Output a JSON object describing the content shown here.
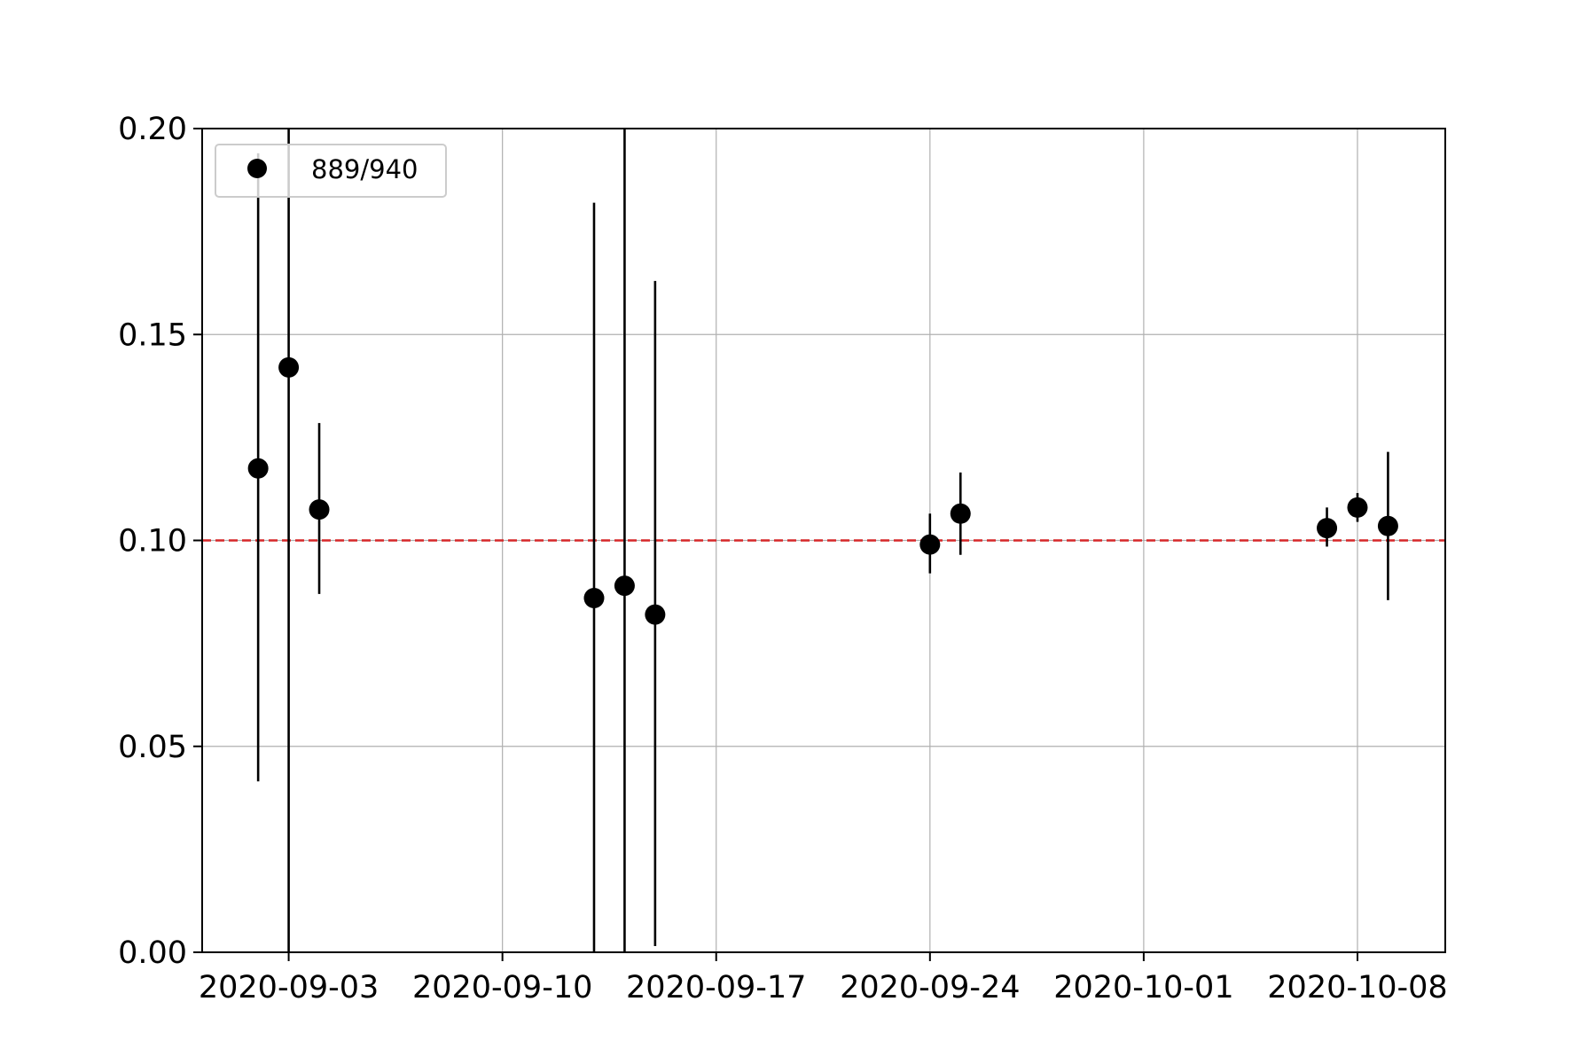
{
  "chart_data": {
    "type": "scatter",
    "title": "",
    "xlabel": "",
    "ylabel": "",
    "x_scale": "date",
    "xlim": [
      "2020-08-31T04:00",
      "2020-10-10T21:00"
    ],
    "ylim": [
      0,
      0.2
    ],
    "grid": true,
    "legend_position": "upper left",
    "x_ticks": [
      "2020-09-03",
      "2020-09-10",
      "2020-09-17",
      "2020-09-24",
      "2020-10-01",
      "2020-10-08"
    ],
    "y_ticks": [
      "0.00",
      "0.05",
      "0.10",
      "0.15",
      "0.20"
    ],
    "reference_line": {
      "y": 0.1,
      "color": "#d62728",
      "style": "dashed"
    },
    "series": [
      {
        "name": "889/940",
        "color": "#000000",
        "points": [
          {
            "x": "2020-09-02",
            "y": 0.1175,
            "yerr_low": 0.0415,
            "yerr_high": 0.194
          },
          {
            "x": "2020-09-03",
            "y": 0.142,
            "yerr_low": 0.0,
            "yerr_high": 0.2
          },
          {
            "x": "2020-09-04",
            "y": 0.1075,
            "yerr_low": 0.087,
            "yerr_high": 0.1285
          },
          {
            "x": "2020-09-13",
            "y": 0.086,
            "yerr_low": 0.0,
            "yerr_high": 0.182
          },
          {
            "x": "2020-09-14",
            "y": 0.089,
            "yerr_low": 0.0,
            "yerr_high": 0.2
          },
          {
            "x": "2020-09-15",
            "y": 0.082,
            "yerr_low": 0.0015,
            "yerr_high": 0.163
          },
          {
            "x": "2020-09-24",
            "y": 0.099,
            "yerr_low": 0.092,
            "yerr_high": 0.1065
          },
          {
            "x": "2020-09-25",
            "y": 0.1065,
            "yerr_low": 0.0965,
            "yerr_high": 0.1165
          },
          {
            "x": "2020-10-07",
            "y": 0.103,
            "yerr_low": 0.0985,
            "yerr_high": 0.108
          },
          {
            "x": "2020-10-08",
            "y": 0.108,
            "yerr_low": 0.1045,
            "yerr_high": 0.1115
          },
          {
            "x": "2020-10-09",
            "y": 0.1035,
            "yerr_low": 0.0855,
            "yerr_high": 0.1215
          }
        ]
      }
    ],
    "colors": {
      "grid": "#b0b0b0",
      "axes": "#000000",
      "legend_border": "#cccccc"
    }
  }
}
